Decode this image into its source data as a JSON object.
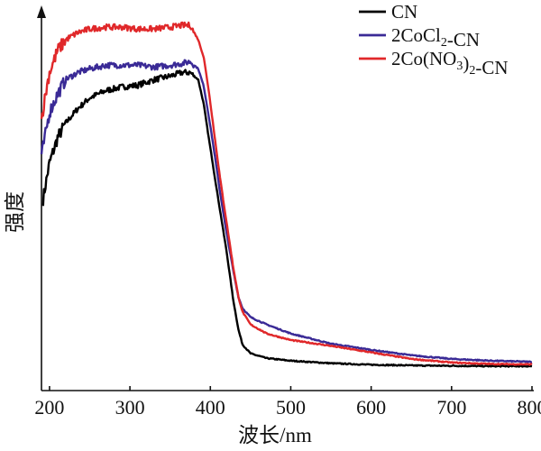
{
  "chart_data": {
    "type": "line",
    "xlabel": "波长/nm",
    "ylabel": "强度",
    "xlim": [
      190,
      800
    ],
    "ylim": [
      0,
      1.0
    ],
    "xticks": [
      200,
      300,
      400,
      500,
      600,
      700,
      800
    ],
    "legend_position": "top-right",
    "grid": false,
    "series": [
      {
        "name": "CN",
        "label_parts": [
          {
            "t": "CN",
            "s": null
          }
        ],
        "color": "#000000",
        "points": [
          [
            192,
            0.47
          ],
          [
            195,
            0.51
          ],
          [
            200,
            0.57
          ],
          [
            210,
            0.64
          ],
          [
            220,
            0.68
          ],
          [
            235,
            0.72
          ],
          [
            250,
            0.75
          ],
          [
            270,
            0.77
          ],
          [
            290,
            0.78
          ],
          [
            310,
            0.785
          ],
          [
            330,
            0.8
          ],
          [
            350,
            0.81
          ],
          [
            365,
            0.82
          ],
          [
            375,
            0.82
          ],
          [
            385,
            0.8
          ],
          [
            392,
            0.73
          ],
          [
            398,
            0.64
          ],
          [
            405,
            0.54
          ],
          [
            412,
            0.44
          ],
          [
            420,
            0.33
          ],
          [
            428,
            0.2
          ],
          [
            435,
            0.11
          ],
          [
            440,
            0.07
          ],
          [
            450,
            0.045
          ],
          [
            470,
            0.032
          ],
          [
            500,
            0.025
          ],
          [
            550,
            0.018
          ],
          [
            600,
            0.014
          ],
          [
            650,
            0.012
          ],
          [
            700,
            0.011
          ],
          [
            750,
            0.01
          ],
          [
            800,
            0.01
          ]
        ]
      },
      {
        "name": "2CoCl2-CN",
        "label_parts": [
          {
            "t": "2CoCl",
            "s": null
          },
          {
            "t": "2",
            "s": "sub"
          },
          {
            "t": "-CN",
            "s": null
          }
        ],
        "color": "#3a2a96",
        "points": [
          [
            190,
            0.59
          ],
          [
            195,
            0.65
          ],
          [
            200,
            0.71
          ],
          [
            210,
            0.76
          ],
          [
            220,
            0.8
          ],
          [
            235,
            0.82
          ],
          [
            250,
            0.83
          ],
          [
            270,
            0.84
          ],
          [
            290,
            0.84
          ],
          [
            310,
            0.84
          ],
          [
            330,
            0.835
          ],
          [
            350,
            0.84
          ],
          [
            365,
            0.845
          ],
          [
            375,
            0.85
          ],
          [
            385,
            0.83
          ],
          [
            392,
            0.78
          ],
          [
            398,
            0.7
          ],
          [
            405,
            0.6
          ],
          [
            412,
            0.49
          ],
          [
            420,
            0.38
          ],
          [
            428,
            0.28
          ],
          [
            435,
            0.2
          ],
          [
            440,
            0.17
          ],
          [
            450,
            0.145
          ],
          [
            470,
            0.125
          ],
          [
            500,
            0.1
          ],
          [
            550,
            0.072
          ],
          [
            600,
            0.055
          ],
          [
            650,
            0.04
          ],
          [
            700,
            0.03
          ],
          [
            750,
            0.025
          ],
          [
            800,
            0.022
          ]
        ]
      },
      {
        "name": "2Co(NO3)2-CN",
        "label_parts": [
          {
            "t": "2Co(NO",
            "s": null
          },
          {
            "t": "3",
            "s": "sub"
          },
          {
            "t": ")",
            "s": null
          },
          {
            "t": "2",
            "s": "sub"
          },
          {
            "t": "-CN",
            "s": null
          }
        ],
        "color": "#e0282a",
        "points": [
          [
            190,
            0.69
          ],
          [
            195,
            0.76
          ],
          [
            200,
            0.82
          ],
          [
            210,
            0.88
          ],
          [
            220,
            0.91
          ],
          [
            235,
            0.93
          ],
          [
            250,
            0.94
          ],
          [
            270,
            0.945
          ],
          [
            290,
            0.945
          ],
          [
            310,
            0.94
          ],
          [
            330,
            0.94
          ],
          [
            350,
            0.945
          ],
          [
            365,
            0.95
          ],
          [
            375,
            0.95
          ],
          [
            385,
            0.91
          ],
          [
            392,
            0.86
          ],
          [
            398,
            0.77
          ],
          [
            405,
            0.65
          ],
          [
            412,
            0.53
          ],
          [
            420,
            0.41
          ],
          [
            428,
            0.29
          ],
          [
            435,
            0.2
          ],
          [
            440,
            0.16
          ],
          [
            450,
            0.125
          ],
          [
            470,
            0.1
          ],
          [
            500,
            0.082
          ],
          [
            550,
            0.066
          ],
          [
            600,
            0.048
          ],
          [
            650,
            0.03
          ],
          [
            700,
            0.02
          ],
          [
            750,
            0.016
          ],
          [
            800,
            0.015
          ]
        ]
      }
    ]
  }
}
